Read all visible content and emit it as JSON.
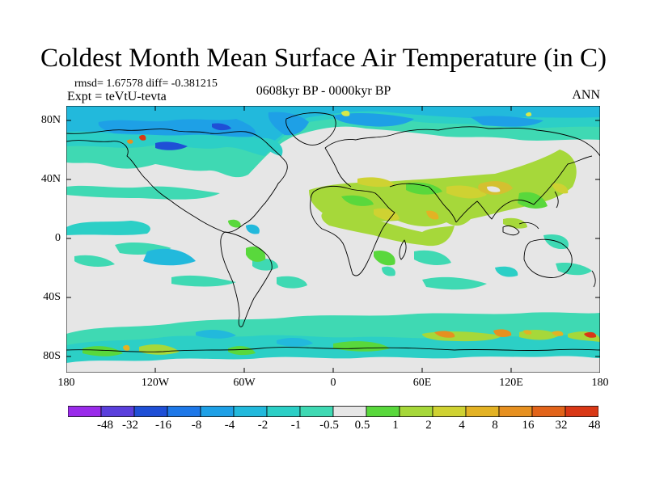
{
  "title": "Coldest Month Mean Surface Air Temperature (in C)",
  "stats": "rmsd= 1.67578  diff= -0.381215",
  "expt": "Expt = teVtU-tevta",
  "period": "0608kyr BP - 0000kyr BP",
  "season": "ANN",
  "lat_ticks": [
    "80N",
    "40N",
    "0",
    "40S",
    "80S"
  ],
  "lon_ticks": [
    "180",
    "120W",
    "60W",
    "0",
    "60E",
    "120E",
    "180"
  ],
  "colorbar": {
    "labels": [
      "-48",
      "-32",
      "-16",
      "-8",
      "-4",
      "-2",
      "-1",
      "-0.5",
      "0.5",
      "1",
      "2",
      "4",
      "8",
      "16",
      "32",
      "48"
    ],
    "colors": [
      "#9a2bea",
      "#5a3fdc",
      "#1f4fd6",
      "#1e78e8",
      "#1ea0e6",
      "#22b9dc",
      "#2ccfc6",
      "#3fd9b3",
      "#e6e6e6",
      "#59d83c",
      "#a6d83a",
      "#cfd232",
      "#e3b224",
      "#e69020",
      "#e2641a",
      "#d93816"
    ]
  }
}
